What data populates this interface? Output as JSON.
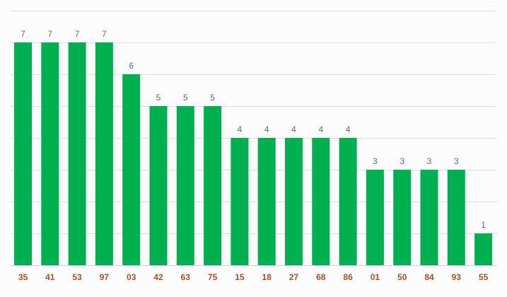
{
  "colors": {
    "bar": "#00b050",
    "value_label": "#4f7080",
    "tick_label": "#a0522d",
    "grid": "#dcdcdc"
  },
  "chart_data": {
    "type": "bar",
    "categories": [
      "35",
      "41",
      "53",
      "97",
      "03",
      "42",
      "63",
      "75",
      "15",
      "18",
      "27",
      "68",
      "86",
      "01",
      "50",
      "84",
      "93",
      "55"
    ],
    "values": [
      7,
      7,
      7,
      7,
      6,
      5,
      5,
      5,
      4,
      4,
      4,
      4,
      4,
      3,
      3,
      3,
      3,
      1
    ],
    "title": "",
    "xlabel": "",
    "ylabel": "",
    "ylim": [
      0,
      8
    ],
    "grid": true,
    "data_labels": true,
    "legend": "none"
  }
}
